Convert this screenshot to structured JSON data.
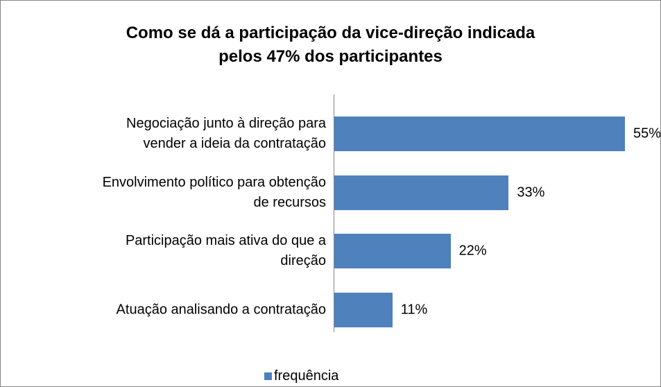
{
  "chart_data": {
    "type": "bar",
    "orientation": "horizontal",
    "title": "Como se dá a participação da vice-direção indicada\npelos 47% dos participantes",
    "categories": [
      "Negociação junto à direção para\nvender a ideia da contratação",
      "Envolvimento político para obtenção\nde recursos",
      "Participação mais ativa do que a\ndireção",
      "Atuação analisando a contratação"
    ],
    "series": [
      {
        "name": "frequência",
        "color": "#4f81bd",
        "values": [
          55,
          33,
          22,
          11
        ],
        "value_labels": [
          "55%",
          "33%",
          "22%",
          "11%"
        ]
      }
    ],
    "legend": "bottom"
  }
}
